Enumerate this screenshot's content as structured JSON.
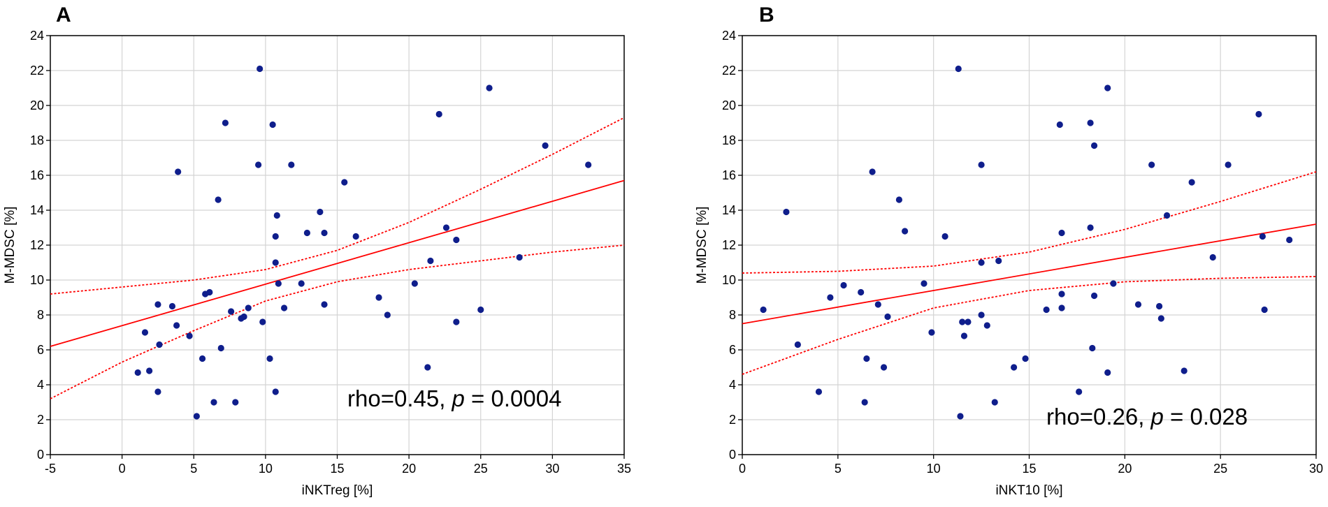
{
  "chart_data": [
    {
      "type": "scatter",
      "panel": "A",
      "xlabel": "iNKTreg [%]",
      "ylabel": "M-MDSC [%]",
      "xlim": [
        -5,
        35
      ],
      "ylim": [
        0,
        24
      ],
      "xticks": [
        -5,
        0,
        5,
        10,
        15,
        20,
        25,
        30,
        35
      ],
      "yticks": [
        0,
        2,
        4,
        6,
        8,
        10,
        12,
        14,
        16,
        18,
        20,
        22,
        24
      ],
      "grid": true,
      "annotation": {
        "prefix": "rho=0.45, ",
        "italic": "p",
        "suffix": " = 0.0004"
      },
      "fit_line": {
        "x": [
          -5,
          35
        ],
        "y": [
          6.2,
          15.7
        ]
      },
      "ci_lower": {
        "x": [
          -5,
          0,
          5,
          10,
          15,
          20,
          25,
          30,
          35
        ],
        "y": [
          3.2,
          5.3,
          7.1,
          8.8,
          9.9,
          10.6,
          11.1,
          11.6,
          12.0
        ]
      },
      "ci_upper": {
        "x": [
          -5,
          0,
          5,
          10,
          15,
          20,
          25,
          30,
          35
        ],
        "y": [
          9.2,
          9.6,
          10.0,
          10.6,
          11.7,
          13.3,
          15.2,
          17.2,
          19.3
        ]
      },
      "points": [
        [
          1.1,
          4.7
        ],
        [
          1.6,
          7.0
        ],
        [
          1.9,
          4.8
        ],
        [
          2.5,
          8.6
        ],
        [
          2.6,
          6.3
        ],
        [
          2.5,
          3.6
        ],
        [
          3.5,
          8.5
        ],
        [
          3.8,
          7.4
        ],
        [
          3.9,
          16.2
        ],
        [
          4.7,
          6.8
        ],
        [
          5.2,
          2.2
        ],
        [
          5.6,
          5.5
        ],
        [
          5.8,
          9.2
        ],
        [
          6.1,
          9.3
        ],
        [
          6.4,
          3.0
        ],
        [
          6.7,
          14.6
        ],
        [
          6.9,
          6.1
        ],
        [
          7.2,
          19.0
        ],
        [
          7.6,
          8.2
        ],
        [
          7.9,
          3.0
        ],
        [
          8.3,
          7.8
        ],
        [
          8.5,
          7.9
        ],
        [
          8.8,
          8.4
        ],
        [
          9.5,
          16.6
        ],
        [
          9.6,
          22.1
        ],
        [
          9.8,
          7.6
        ],
        [
          10.3,
          5.5
        ],
        [
          10.5,
          18.9
        ],
        [
          10.7,
          12.5
        ],
        [
          10.8,
          13.7
        ],
        [
          10.7,
          11.0
        ],
        [
          10.9,
          9.8
        ],
        [
          10.7,
          3.6
        ],
        [
          11.3,
          8.4
        ],
        [
          11.8,
          16.6
        ],
        [
          12.5,
          9.8
        ],
        [
          12.9,
          12.7
        ],
        [
          13.8,
          13.9
        ],
        [
          14.1,
          12.7
        ],
        [
          14.1,
          8.6
        ],
        [
          15.5,
          15.6
        ],
        [
          16.3,
          12.5
        ],
        [
          17.9,
          9.0
        ],
        [
          18.5,
          8.0
        ],
        [
          20.4,
          9.8
        ],
        [
          21.3,
          5.0
        ],
        [
          21.5,
          11.1
        ],
        [
          22.1,
          19.5
        ],
        [
          22.6,
          13.0
        ],
        [
          23.3,
          12.3
        ],
        [
          23.3,
          7.6
        ],
        [
          25.0,
          8.3
        ],
        [
          25.6,
          21.0
        ],
        [
          27.7,
          11.3
        ],
        [
          29.5,
          17.7
        ],
        [
          32.5,
          16.6
        ]
      ]
    },
    {
      "type": "scatter",
      "panel": "B",
      "xlabel": "iNKT10 [%]",
      "ylabel": "M-MDSC [%]",
      "xlim": [
        0,
        30
      ],
      "ylim": [
        0,
        24
      ],
      "xticks": [
        0,
        5,
        10,
        15,
        20,
        25,
        30
      ],
      "yticks": [
        0,
        2,
        4,
        6,
        8,
        10,
        12,
        14,
        16,
        18,
        20,
        22,
        24
      ],
      "grid": true,
      "annotation": {
        "prefix": "rho=0.26, ",
        "italic": "p",
        "suffix": " = 0.028"
      },
      "fit_line": {
        "x": [
          0,
          30
        ],
        "y": [
          7.5,
          13.2
        ]
      },
      "ci_lower": {
        "x": [
          0,
          5,
          10,
          15,
          20,
          25,
          30
        ],
        "y": [
          4.6,
          6.6,
          8.4,
          9.4,
          9.9,
          10.1,
          10.2
        ]
      },
      "ci_upper": {
        "x": [
          0,
          5,
          10,
          15,
          20,
          25,
          30
        ],
        "y": [
          10.4,
          10.5,
          10.8,
          11.6,
          12.9,
          14.5,
          16.2
        ]
      },
      "points": [
        [
          1.1,
          8.3
        ],
        [
          2.3,
          13.9
        ],
        [
          2.9,
          6.3
        ],
        [
          4.0,
          3.6
        ],
        [
          4.6,
          9.0
        ],
        [
          5.3,
          9.7
        ],
        [
          6.2,
          9.3
        ],
        [
          6.4,
          3.0
        ],
        [
          6.5,
          5.5
        ],
        [
          6.8,
          16.2
        ],
        [
          7.1,
          8.6
        ],
        [
          7.4,
          5.0
        ],
        [
          7.6,
          7.9
        ],
        [
          8.2,
          14.6
        ],
        [
          8.5,
          12.8
        ],
        [
          9.5,
          9.8
        ],
        [
          9.9,
          7.0
        ],
        [
          10.6,
          12.5
        ],
        [
          11.3,
          22.1
        ],
        [
          11.5,
          7.6
        ],
        [
          11.6,
          6.8
        ],
        [
          11.8,
          7.6
        ],
        [
          12.5,
          16.6
        ],
        [
          12.5,
          11.0
        ],
        [
          12.5,
          8.0
        ],
        [
          12.8,
          7.4
        ],
        [
          13.2,
          3.0
        ],
        [
          13.4,
          11.1
        ],
        [
          14.2,
          5.0
        ],
        [
          14.8,
          5.5
        ],
        [
          15.9,
          8.3
        ],
        [
          16.6,
          18.9
        ],
        [
          16.7,
          12.7
        ],
        [
          16.7,
          9.2
        ],
        [
          16.7,
          8.4
        ],
        [
          17.6,
          3.6
        ],
        [
          18.2,
          19.0
        ],
        [
          18.2,
          13.0
        ],
        [
          18.3,
          6.1
        ],
        [
          18.4,
          17.7
        ],
        [
          18.4,
          9.1
        ],
        [
          19.1,
          21.0
        ],
        [
          19.1,
          4.7
        ],
        [
          19.4,
          9.8
        ],
        [
          11.4,
          2.2
        ],
        [
          20.7,
          8.6
        ],
        [
          21.4,
          16.6
        ],
        [
          21.8,
          8.5
        ],
        [
          21.9,
          7.8
        ],
        [
          22.2,
          13.7
        ],
        [
          23.1,
          4.8
        ],
        [
          23.5,
          15.6
        ],
        [
          24.6,
          11.3
        ],
        [
          25.4,
          16.6
        ],
        [
          27.0,
          19.5
        ],
        [
          27.2,
          12.5
        ],
        [
          27.3,
          8.3
        ],
        [
          28.6,
          12.3
        ]
      ]
    }
  ]
}
